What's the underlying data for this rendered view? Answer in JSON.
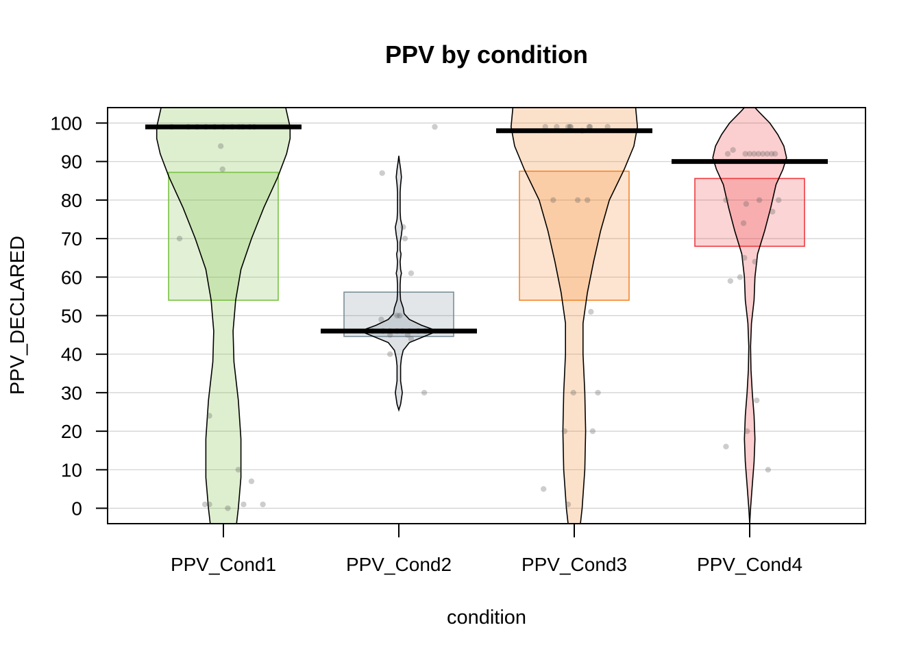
{
  "chart_data": {
    "type": "pirateplot",
    "title": "PPV by condition",
    "xlabel": "condition",
    "ylabel": "PPV_DECLARED",
    "ylim": [
      -4,
      104
    ],
    "yticks": [
      0,
      10,
      20,
      30,
      40,
      50,
      60,
      70,
      80,
      90,
      100
    ],
    "grid": true,
    "categories": [
      "PPV_Cond1",
      "PPV_Cond2",
      "PPV_Cond3",
      "PPV_Cond4"
    ],
    "series": [
      {
        "category": "PPV_Cond1",
        "color": "#7ac143",
        "center_line": 99,
        "box_low": 54,
        "box_high": 87.2,
        "points": [
          {
            "x": -0.59,
            "y": 99
          },
          {
            "x": -0.4,
            "y": 99
          },
          {
            "x": -0.3,
            "y": 99
          },
          {
            "x": -0.2,
            "y": 99
          },
          {
            "x": -0.1,
            "y": 99
          },
          {
            "x": 0.0,
            "y": 99
          },
          {
            "x": 0.1,
            "y": 99
          },
          {
            "x": 0.18,
            "y": 99
          },
          {
            "x": 0.22,
            "y": 99
          },
          {
            "x": 0.3,
            "y": 99
          },
          {
            "x": 0.35,
            "y": 99
          },
          {
            "x": -0.03,
            "y": 94
          },
          {
            "x": -0.01,
            "y": 88
          },
          {
            "x": -0.5,
            "y": 70
          },
          {
            "x": -0.16,
            "y": 24
          },
          {
            "x": -0.21,
            "y": 1
          },
          {
            "x": -0.16,
            "y": 1
          },
          {
            "x": 0.05,
            "y": 0
          },
          {
            "x": 0.17,
            "y": 10
          },
          {
            "x": 0.32,
            "y": 7
          },
          {
            "x": 0.23,
            "y": 1
          },
          {
            "x": 0.45,
            "y": 1
          }
        ],
        "density": [
          [
            -4,
            0.15
          ],
          [
            0,
            0.17
          ],
          [
            8,
            0.2
          ],
          [
            18,
            0.2
          ],
          [
            28,
            0.17
          ],
          [
            38,
            0.12
          ],
          [
            46,
            0.11
          ],
          [
            54,
            0.14
          ],
          [
            62,
            0.2
          ],
          [
            70,
            0.32
          ],
          [
            78,
            0.46
          ],
          [
            86,
            0.62
          ],
          [
            92,
            0.72
          ],
          [
            96,
            0.76
          ],
          [
            99,
            0.76
          ],
          [
            101,
            0.74
          ],
          [
            104,
            0.71
          ]
        ]
      },
      {
        "category": "PPV_Cond2",
        "color": "#7b8d98",
        "center_line": 46,
        "box_low": 44.6,
        "box_high": 56.1,
        "points": [
          {
            "x": -0.19,
            "y": 87
          },
          {
            "x": 0.05,
            "y": 73
          },
          {
            "x": 0.07,
            "y": 70
          },
          {
            "x": 0.14,
            "y": 61
          },
          {
            "x": -0.2,
            "y": 49
          },
          {
            "x": -0.02,
            "y": 50
          },
          {
            "x": 0.01,
            "y": 50
          },
          {
            "x": -0.3,
            "y": 46
          },
          {
            "x": -0.18,
            "y": 46
          },
          {
            "x": -0.1,
            "y": 46
          },
          {
            "x": -0.02,
            "y": 46
          },
          {
            "x": 0.04,
            "y": 46
          },
          {
            "x": 0.12,
            "y": 46
          },
          {
            "x": 0.22,
            "y": 46
          },
          {
            "x": 0.3,
            "y": 46
          },
          {
            "x": 0.1,
            "y": 45
          },
          {
            "x": 0.14,
            "y": 44
          },
          {
            "x": -0.1,
            "y": 45
          },
          {
            "x": -0.1,
            "y": 40
          },
          {
            "x": 0.29,
            "y": 30
          },
          {
            "x": 0.41,
            "y": 99
          }
        ],
        "density": [
          [
            25.5,
            0
          ],
          [
            27,
            0.02
          ],
          [
            30,
            0.04
          ],
          [
            33,
            0.02
          ],
          [
            35,
            0.02
          ],
          [
            37,
            0.02
          ],
          [
            39,
            0.03
          ],
          [
            41,
            0.05
          ],
          [
            43,
            0.12
          ],
          [
            44.5,
            0.28
          ],
          [
            46,
            0.44
          ],
          [
            47.5,
            0.26
          ],
          [
            49,
            0.12
          ],
          [
            50.5,
            0.06
          ],
          [
            52,
            0.05
          ],
          [
            54,
            0.02
          ],
          [
            56,
            0.015
          ],
          [
            58,
            0.015
          ],
          [
            60,
            0.02
          ],
          [
            61,
            0.03
          ],
          [
            62,
            0.02
          ],
          [
            64,
            0.015
          ],
          [
            66,
            0.025
          ],
          [
            67,
            0.015
          ],
          [
            69,
            0.015
          ],
          [
            71,
            0.03
          ],
          [
            73,
            0.04
          ],
          [
            75,
            0.02
          ],
          [
            77,
            0.015
          ],
          [
            80,
            0.015
          ],
          [
            82,
            0.015
          ],
          [
            84,
            0.02
          ],
          [
            86,
            0.03
          ],
          [
            88,
            0.02
          ],
          [
            90,
            0.008
          ],
          [
            91.5,
            0
          ]
        ]
      },
      {
        "category": "PPV_Cond3",
        "color": "#f5862a",
        "center_line": 98,
        "box_low": 54,
        "box_high": 87.5,
        "points": [
          {
            "x": -0.33,
            "y": 99
          },
          {
            "x": -0.2,
            "y": 99
          },
          {
            "x": -0.07,
            "y": 99
          },
          {
            "x": -0.05,
            "y": 99
          },
          {
            "x": -0.04,
            "y": 99
          },
          {
            "x": 0.17,
            "y": 99
          },
          {
            "x": 0.18,
            "y": 99
          },
          {
            "x": 0.38,
            "y": 99
          },
          {
            "x": 0.09,
            "y": 98
          },
          {
            "x": -0.24,
            "y": 80
          },
          {
            "x": 0.04,
            "y": 80
          },
          {
            "x": 0.15,
            "y": 80
          },
          {
            "x": 0.19,
            "y": 51
          },
          {
            "x": -0.01,
            "y": 30
          },
          {
            "x": 0.27,
            "y": 30
          },
          {
            "x": -0.11,
            "y": 20
          },
          {
            "x": 0.21,
            "y": 20
          },
          {
            "x": -0.35,
            "y": 5
          },
          {
            "x": -0.07,
            "y": 1
          }
        ],
        "density": [
          [
            -4,
            0.07
          ],
          [
            0,
            0.09
          ],
          [
            10,
            0.12
          ],
          [
            20,
            0.13
          ],
          [
            30,
            0.12
          ],
          [
            40,
            0.1
          ],
          [
            48,
            0.1
          ],
          [
            56,
            0.15
          ],
          [
            64,
            0.22
          ],
          [
            72,
            0.3
          ],
          [
            80,
            0.4
          ],
          [
            88,
            0.57
          ],
          [
            94,
            0.68
          ],
          [
            99,
            0.72
          ],
          [
            104,
            0.7
          ]
        ]
      },
      {
        "category": "PPV_Cond4",
        "color": "#ee3a3f",
        "center_line": 90,
        "box_low": 68,
        "box_high": 85.6,
        "points": [
          {
            "x": -0.25,
            "y": 92
          },
          {
            "x": -0.19,
            "y": 93
          },
          {
            "x": -0.05,
            "y": 92
          },
          {
            "x": 0.0,
            "y": 92
          },
          {
            "x": 0.05,
            "y": 92
          },
          {
            "x": 0.1,
            "y": 92
          },
          {
            "x": 0.15,
            "y": 92
          },
          {
            "x": 0.2,
            "y": 92
          },
          {
            "x": 0.25,
            "y": 92
          },
          {
            "x": 0.29,
            "y": 92
          },
          {
            "x": -0.27,
            "y": 80
          },
          {
            "x": 0.11,
            "y": 80
          },
          {
            "x": 0.33,
            "y": 80
          },
          {
            "x": -0.04,
            "y": 79
          },
          {
            "x": 0.26,
            "y": 77
          },
          {
            "x": -0.07,
            "y": 74
          },
          {
            "x": -0.06,
            "y": 65
          },
          {
            "x": 0.06,
            "y": 64
          },
          {
            "x": -0.22,
            "y": 59
          },
          {
            "x": -0.11,
            "y": 60
          },
          {
            "x": 0.08,
            "y": 28
          },
          {
            "x": -0.03,
            "y": 20
          },
          {
            "x": -0.27,
            "y": 16
          },
          {
            "x": 0.21,
            "y": 10
          }
        ],
        "density": [
          [
            -4,
            0
          ],
          [
            0,
            0.01
          ],
          [
            6,
            0.03
          ],
          [
            12,
            0.05
          ],
          [
            18,
            0.06
          ],
          [
            24,
            0.05
          ],
          [
            30,
            0.03
          ],
          [
            36,
            0.015
          ],
          [
            42,
            0.01
          ],
          [
            48,
            0.02
          ],
          [
            54,
            0.05
          ],
          [
            60,
            0.06
          ],
          [
            66,
            0.09
          ],
          [
            72,
            0.17
          ],
          [
            78,
            0.24
          ],
          [
            84,
            0.3
          ],
          [
            88,
            0.38
          ],
          [
            91,
            0.42
          ],
          [
            94,
            0.39
          ],
          [
            97,
            0.32
          ],
          [
            100,
            0.23
          ],
          [
            103,
            0.1
          ],
          [
            104,
            0.06
          ]
        ]
      }
    ]
  }
}
